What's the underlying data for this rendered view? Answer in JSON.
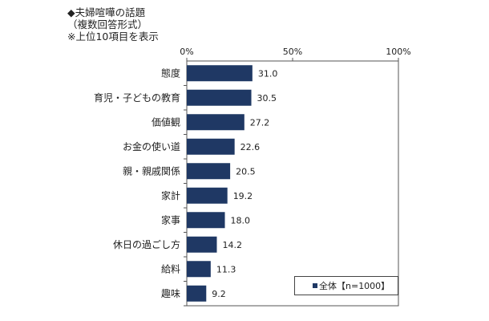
{
  "header": {
    "title": "◆夫婦喧嘩の話題",
    "subtitle": "（複数回答形式）",
    "note": "※上位10項目を表示"
  },
  "colors": {
    "bar": "#1f3864",
    "border": "#555555",
    "grid": "#999999"
  },
  "chart_data": {
    "type": "bar",
    "orientation": "horizontal",
    "categories": [
      "態度",
      "育児・子どもの教育",
      "価値観",
      "お金の使い道",
      "親・親戚関係",
      "家計",
      "家事",
      "休日の過ごし方",
      "給料",
      "趣味"
    ],
    "series": [
      {
        "name": "全体【n=1000】",
        "values": [
          31.0,
          30.5,
          27.2,
          22.6,
          20.5,
          19.2,
          18.0,
          14.2,
          11.3,
          9.2
        ]
      }
    ],
    "value_labels": [
      "31.0",
      "30.5",
      "27.2",
      "22.6",
      "20.5",
      "19.2",
      "18.0",
      "14.2",
      "11.3",
      "9.2"
    ],
    "xlim": [
      0,
      100
    ],
    "ticks": [
      "0%",
      "50%",
      "100%"
    ],
    "tick_values": [
      0,
      50,
      100
    ],
    "grid": false,
    "legend": {
      "placement": "bottom-right",
      "label": "全体【n=1000】"
    }
  }
}
